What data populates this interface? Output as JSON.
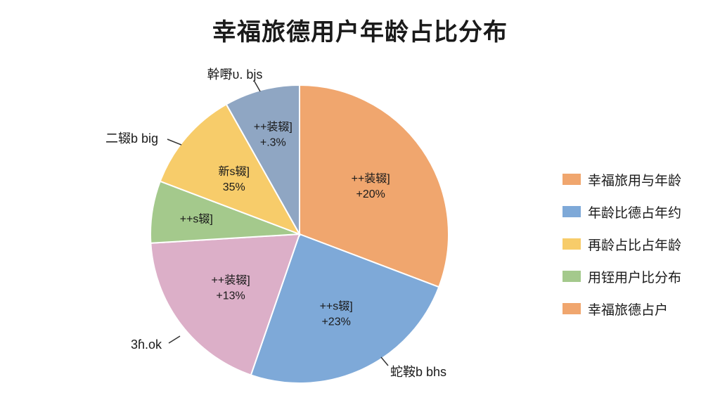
{
  "chart_data": {
    "type": "pie",
    "title": "幸福旅德用户年龄占比分布",
    "slices": [
      {
        "label": "++装辍]",
        "value_text": "+20%",
        "share": 32.0,
        "color": "#F0A66E"
      },
      {
        "label": "++s辍]",
        "value_text": "+23%",
        "share": 25.5,
        "color": "#7EA9D8"
      },
      {
        "label": "++装辍]",
        "value_text": "+13%",
        "share": 19.5,
        "color": "#DCAFC8"
      },
      {
        "label": "++s辍]",
        "value_text": "",
        "share": 7.0,
        "color": "#A4C98C"
      },
      {
        "label": "新s辍]",
        "value_text": "35%",
        "share": 11.5,
        "color": "#F7CC6A"
      },
      {
        "label": "++装辍]",
        "value_text": "+.3%",
        "share": 8.5,
        "color": "#8FA6C3"
      }
    ],
    "outer_labels": [
      "幹嘢υ. bjs",
      "二辍b big",
      "3ɦ.ok",
      "蛇鞍b bhs"
    ],
    "legend": {
      "position": "right",
      "entries": [
        {
          "label": "幸福旅用与年龄",
          "color": "#F0A66E"
        },
        {
          "label": "年龄比德占年约",
          "color": "#7EA9D8"
        },
        {
          "label": "再龄占比占年龄",
          "color": "#F7CC6A"
        },
        {
          "label": "用铚用户比分布",
          "color": "#A4C98C"
        },
        {
          "label": "幸福旅德占户",
          "color": "#F0A66E"
        }
      ]
    }
  }
}
